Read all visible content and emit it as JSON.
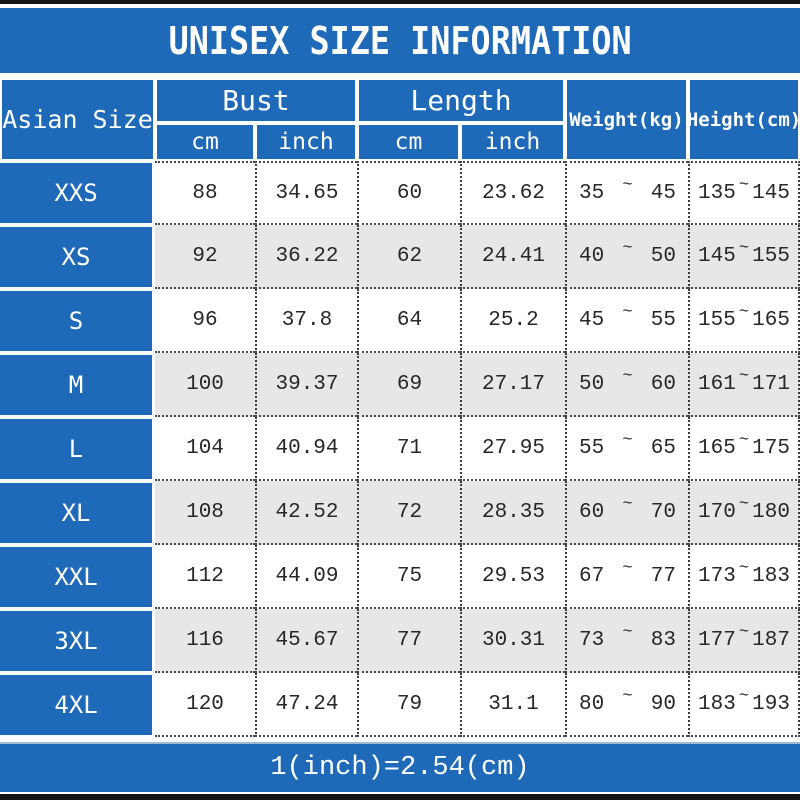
{
  "title": "UNISEX SIZE INFORMATION",
  "footer_note": "1(inch)=2.54(cm)",
  "colors": {
    "primary_blue": "#1e69b8",
    "alt_row_gray": "#e8e7e7",
    "frame_black": "#141414",
    "data_text": "#272727",
    "header_text": "#ffffff"
  },
  "table": {
    "tilde": "~",
    "header": {
      "asian_size": "Asian Size",
      "bust": "Bust",
      "length": "Length",
      "weight": "Weight(kg)",
      "height": "Height(cm)",
      "bust_cm": "cm",
      "bust_inch": "inch",
      "length_cm": "cm",
      "length_inch": "inch"
    },
    "rows": [
      {
        "size": "XXS",
        "bust_cm": "88",
        "bust_inch": "34.65",
        "length_cm": "60",
        "length_inch": "23.62",
        "weight_min": "35",
        "weight_max": "45",
        "height_min": "135",
        "height_max": "145"
      },
      {
        "size": "XS",
        "bust_cm": "92",
        "bust_inch": "36.22",
        "length_cm": "62",
        "length_inch": "24.41",
        "weight_min": "40",
        "weight_max": "50",
        "height_min": "145",
        "height_max": "155"
      },
      {
        "size": "S",
        "bust_cm": "96",
        "bust_inch": "37.8",
        "length_cm": "64",
        "length_inch": "25.2",
        "weight_min": "45",
        "weight_max": "55",
        "height_min": "155",
        "height_max": "165"
      },
      {
        "size": "M",
        "bust_cm": "100",
        "bust_inch": "39.37",
        "length_cm": "69",
        "length_inch": "27.17",
        "weight_min": "50",
        "weight_max": "60",
        "height_min": "161",
        "height_max": "171"
      },
      {
        "size": "L",
        "bust_cm": "104",
        "bust_inch": "40.94",
        "length_cm": "71",
        "length_inch": "27.95",
        "weight_min": "55",
        "weight_max": "65",
        "height_min": "165",
        "height_max": "175"
      },
      {
        "size": "XL",
        "bust_cm": "108",
        "bust_inch": "42.52",
        "length_cm": "72",
        "length_inch": "28.35",
        "weight_min": "60",
        "weight_max": "70",
        "height_min": "170",
        "height_max": "180"
      },
      {
        "size": "XXL",
        "bust_cm": "112",
        "bust_inch": "44.09",
        "length_cm": "75",
        "length_inch": "29.53",
        "weight_min": "67",
        "weight_max": "77",
        "height_min": "173",
        "height_max": "183"
      },
      {
        "size": "3XL",
        "bust_cm": "116",
        "bust_inch": "45.67",
        "length_cm": "77",
        "length_inch": "30.31",
        "weight_min": "73",
        "weight_max": "83",
        "height_min": "177",
        "height_max": "187"
      },
      {
        "size": "4XL",
        "bust_cm": "120",
        "bust_inch": "47.24",
        "length_cm": "79",
        "length_inch": "31.1",
        "weight_min": "80",
        "weight_max": "90",
        "height_min": "183",
        "height_max": "193"
      }
    ]
  },
  "chart_data": {
    "type": "table",
    "title": "UNISEX SIZE INFORMATION",
    "columns": [
      "Asian Size",
      "Bust cm",
      "Bust inch",
      "Length cm",
      "Length inch",
      "Weight(kg)",
      "Height(cm)"
    ],
    "rows": [
      [
        "XXS",
        88,
        34.65,
        60,
        23.62,
        "35~45",
        "135~145"
      ],
      [
        "XS",
        92,
        36.22,
        62,
        24.41,
        "40~50",
        "145~155"
      ],
      [
        "S",
        96,
        37.8,
        64,
        25.2,
        "45~55",
        "155~165"
      ],
      [
        "M",
        100,
        39.37,
        69,
        27.17,
        "50~60",
        "161~171"
      ],
      [
        "L",
        104,
        40.94,
        71,
        27.95,
        "55~65",
        "165~175"
      ],
      [
        "XL",
        108,
        42.52,
        72,
        28.35,
        "60~70",
        "170~180"
      ],
      [
        "XXL",
        112,
        44.09,
        75,
        29.53,
        "67~77",
        "173~183"
      ],
      [
        "3XL",
        116,
        45.67,
        77,
        30.31,
        "73~83",
        "177~187"
      ],
      [
        "4XL",
        120,
        47.24,
        79,
        31.1,
        "80~90",
        "183~193"
      ]
    ],
    "note": "1(inch)=2.54(cm)"
  }
}
